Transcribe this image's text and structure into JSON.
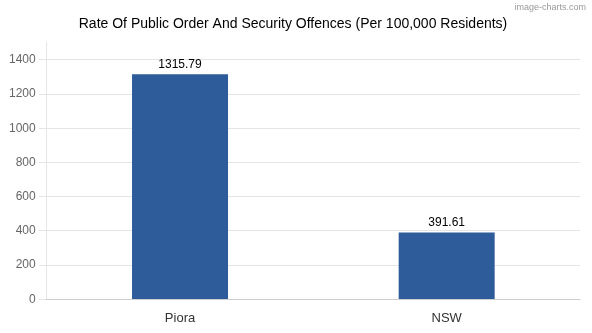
{
  "chart_data": {
    "type": "bar",
    "title": "Rate Of Public Order And Security Offences (Per 100,000 Residents)",
    "categories": [
      "Piora",
      "NSW"
    ],
    "values": [
      1315.79,
      391.61
    ],
    "color": "#2E5B9A",
    "ylim": [
      0,
      1500
    ],
    "yticks": [
      0,
      200,
      400,
      600,
      800,
      1000,
      1200,
      1400
    ],
    "grid": true,
    "data_labels": true,
    "annotations": [
      "image-charts.com"
    ]
  }
}
